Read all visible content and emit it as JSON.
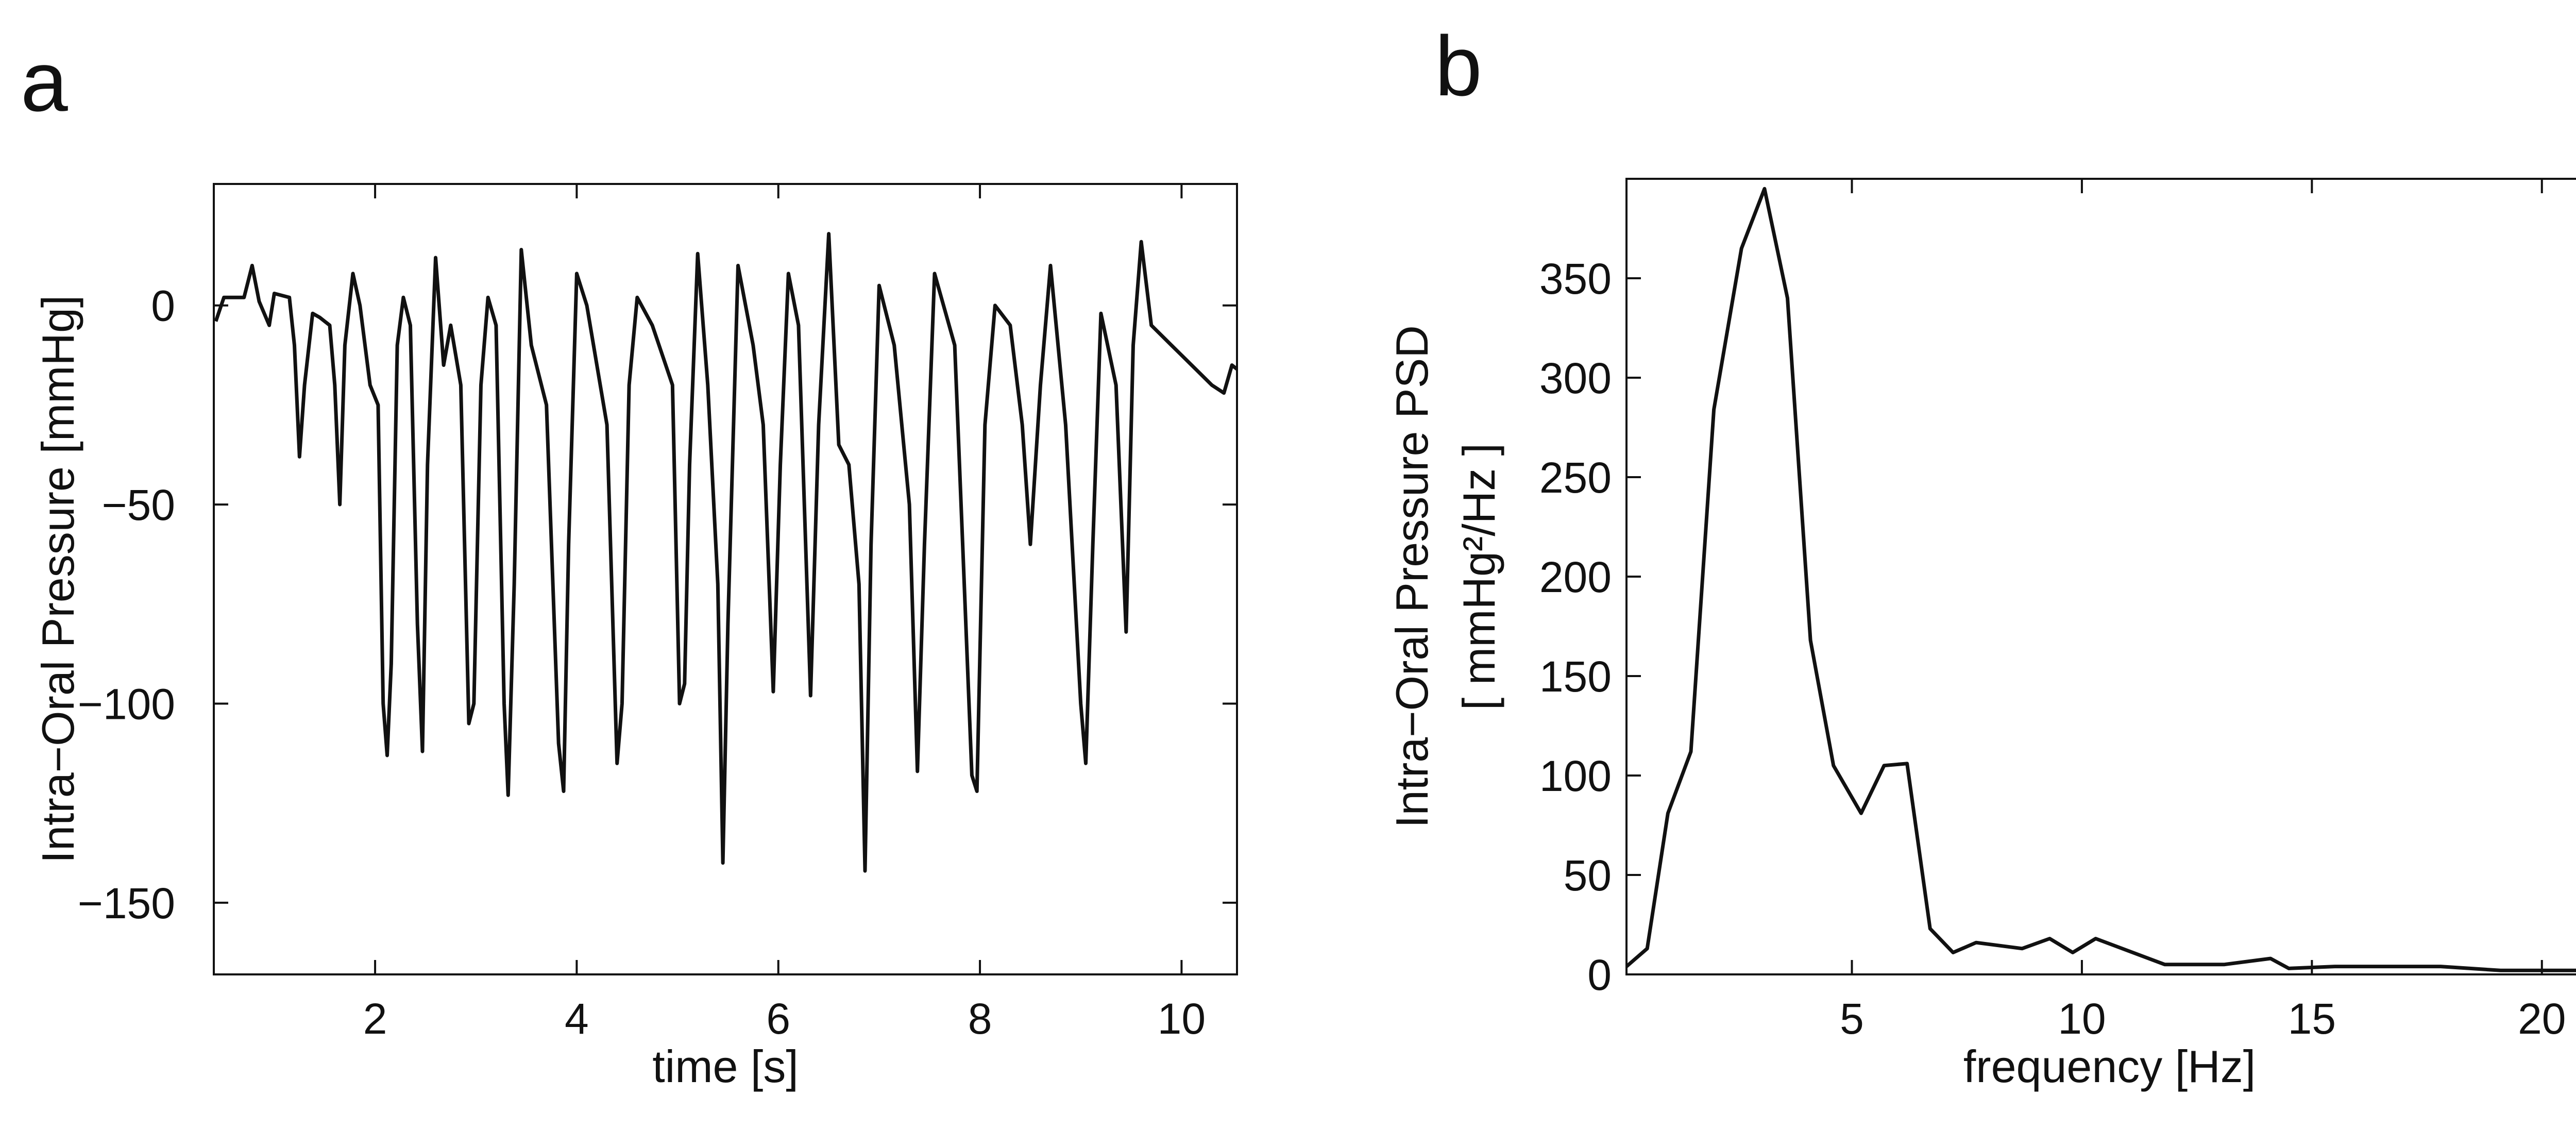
{
  "chart_data": [
    {
      "type": "line",
      "label": "a",
      "xlabel": "time [s]",
      "ylabel": "Intra−Oral Pressure [mmHg]",
      "xlim": [
        0.4,
        10.55
      ],
      "ylim": [
        -168,
        30.5
      ],
      "xticks": [
        2,
        4,
        6,
        8,
        10
      ],
      "yticks": [
        {
          "value": -150,
          "label": "−150"
        },
        {
          "value": -100,
          "label": "−100"
        },
        {
          "value": -50,
          "label": "−50"
        },
        0
      ],
      "series": [
        {
          "color": "#111111",
          "x": [
            0.42,
            0.5,
            0.7,
            0.78,
            0.85,
            0.95,
            1.0,
            1.15,
            1.2,
            1.25,
            1.3,
            1.38,
            1.45,
            1.55,
            1.6,
            1.65,
            1.7,
            1.78,
            1.85,
            1.95,
            2.03,
            2.08,
            2.12,
            2.16,
            2.22,
            2.28,
            2.35,
            2.42,
            2.47,
            2.52,
            2.6,
            2.68,
            2.75,
            2.85,
            2.93,
            2.98,
            3.05,
            3.12,
            3.2,
            3.28,
            3.32,
            3.38,
            3.45,
            3.55,
            3.7,
            3.82,
            3.87,
            3.92,
            4.0,
            4.1,
            4.3,
            4.4,
            4.45,
            4.52,
            4.6,
            4.75,
            4.95,
            5.02,
            5.07,
            5.12,
            5.2,
            5.3,
            5.4,
            5.45,
            5.5,
            5.6,
            5.75,
            5.85,
            5.95,
            6.02,
            6.1,
            6.2,
            6.32,
            6.4,
            6.5,
            6.6,
            6.7,
            6.8,
            6.86,
            6.92,
            7.0,
            7.15,
            7.3,
            7.38,
            7.45,
            7.55,
            7.75,
            7.92,
            7.97,
            8.05,
            8.15,
            8.3,
            8.42,
            8.5,
            8.6,
            8.7,
            8.85,
            9.0,
            9.05,
            9.12,
            9.2,
            9.35,
            9.45,
            9.52,
            9.6,
            9.7,
            9.9,
            10.1,
            10.3,
            10.42,
            10.5,
            10.55
          ],
          "values": [
            -4,
            2,
            2,
            10,
            1,
            -5,
            3,
            2,
            -10,
            -38,
            -20,
            -2,
            -3,
            -5,
            -20,
            -50,
            -10,
            8,
            0,
            -20,
            -25,
            -100,
            -113,
            -90,
            -10,
            2,
            -5,
            -80,
            -112,
            -40,
            12,
            -15,
            -5,
            -20,
            -105,
            -100,
            -20,
            2,
            -5,
            -100,
            -123,
            -70,
            14,
            -10,
            -25,
            -110,
            -122,
            -60,
            8,
            0,
            -30,
            -115,
            -100,
            -20,
            2,
            -5,
            -20,
            -100,
            -95,
            -40,
            13,
            -20,
            -70,
            -140,
            -80,
            10,
            -10,
            -30,
            -97,
            -40,
            8,
            -5,
            -98,
            -30,
            18,
            -35,
            -40,
            -70,
            -142,
            -60,
            5,
            -10,
            -50,
            -117,
            -60,
            8,
            -10,
            -118,
            -122,
            -30,
            0,
            -5,
            -30,
            -60,
            -20,
            10,
            -30,
            -100,
            -115,
            -60,
            -2,
            -20,
            -82,
            -10,
            16,
            -5,
            -10,
            -15,
            -20,
            -22,
            -15,
            -16
          ]
        }
      ]
    },
    {
      "type": "line",
      "label": "b",
      "xlabel": "frequency [Hz]",
      "ylabel": [
        "Intra−Oral Pressure PSD",
        "[ mmHg²/Hz ]"
      ],
      "xlim": [
        0.1,
        21.1
      ],
      "ylim": [
        0,
        400
      ],
      "xticks": [
        5,
        10,
        15,
        20
      ],
      "yticks": [
        0,
        50,
        100,
        150,
        200,
        250,
        300,
        350
      ],
      "series": [
        {
          "color": "#111111",
          "x": [
            0.1,
            0.55,
            1.0,
            1.5,
            2.0,
            2.6,
            3.1,
            3.6,
            4.1,
            4.6,
            5.2,
            5.7,
            6.2,
            6.7,
            7.2,
            7.7,
            8.7,
            9.3,
            9.8,
            10.3,
            11.8,
            13.1,
            14.1,
            14.5,
            15.5,
            17.8,
            19.1,
            21.1
          ],
          "values": [
            4,
            13,
            81,
            112,
            284,
            365,
            395,
            340,
            168,
            105,
            81,
            105,
            106,
            23,
            11,
            16,
            13,
            18,
            11,
            18,
            5,
            5,
            8,
            3,
            4,
            4,
            2,
            2
          ]
        }
      ]
    }
  ]
}
